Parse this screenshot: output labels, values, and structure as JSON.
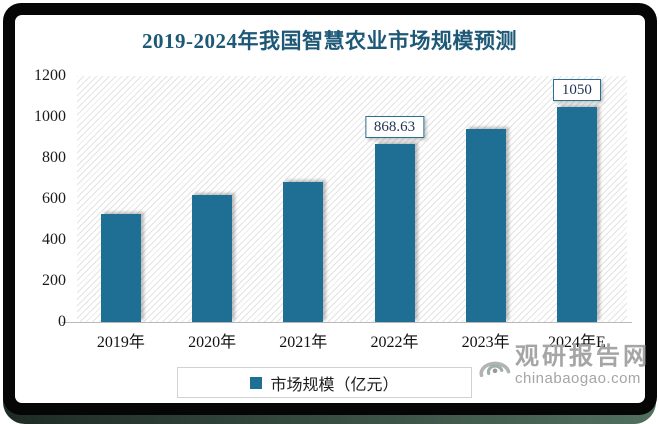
{
  "chart_data": {
    "type": "bar",
    "title": "2019-2024年我国智慧农业市场规模预测",
    "categories": [
      "2019年",
      "2020年",
      "2021年",
      "2022年",
      "2023年",
      "2024年E"
    ],
    "values": [
      526,
      620,
      685,
      868.63,
      940,
      1050
    ],
    "point_labels": [
      "",
      "",
      "",
      "868.63",
      "",
      "1050"
    ],
    "ylim": [
      0,
      1200
    ],
    "yticks": [
      0,
      200,
      400,
      600,
      800,
      1000,
      1200
    ],
    "xlabel": "",
    "ylabel": "",
    "grid": false,
    "legend_position": "bottom",
    "legend": "市场规模（亿元）",
    "bar_color": "#1F6E93"
  },
  "colors": {
    "title": "#1D5877",
    "bar": "#1F6E93",
    "data_label_border": "#2E6E8E",
    "data_label_text": "#1F3250",
    "frame": "#060606",
    "frame_edge_green": "#51705F",
    "axis_line": "#B9B9B9"
  },
  "watermark": {
    "icon": "swirl-eye-icon",
    "name": "观研报告网",
    "site": "chinabaogao.com"
  }
}
